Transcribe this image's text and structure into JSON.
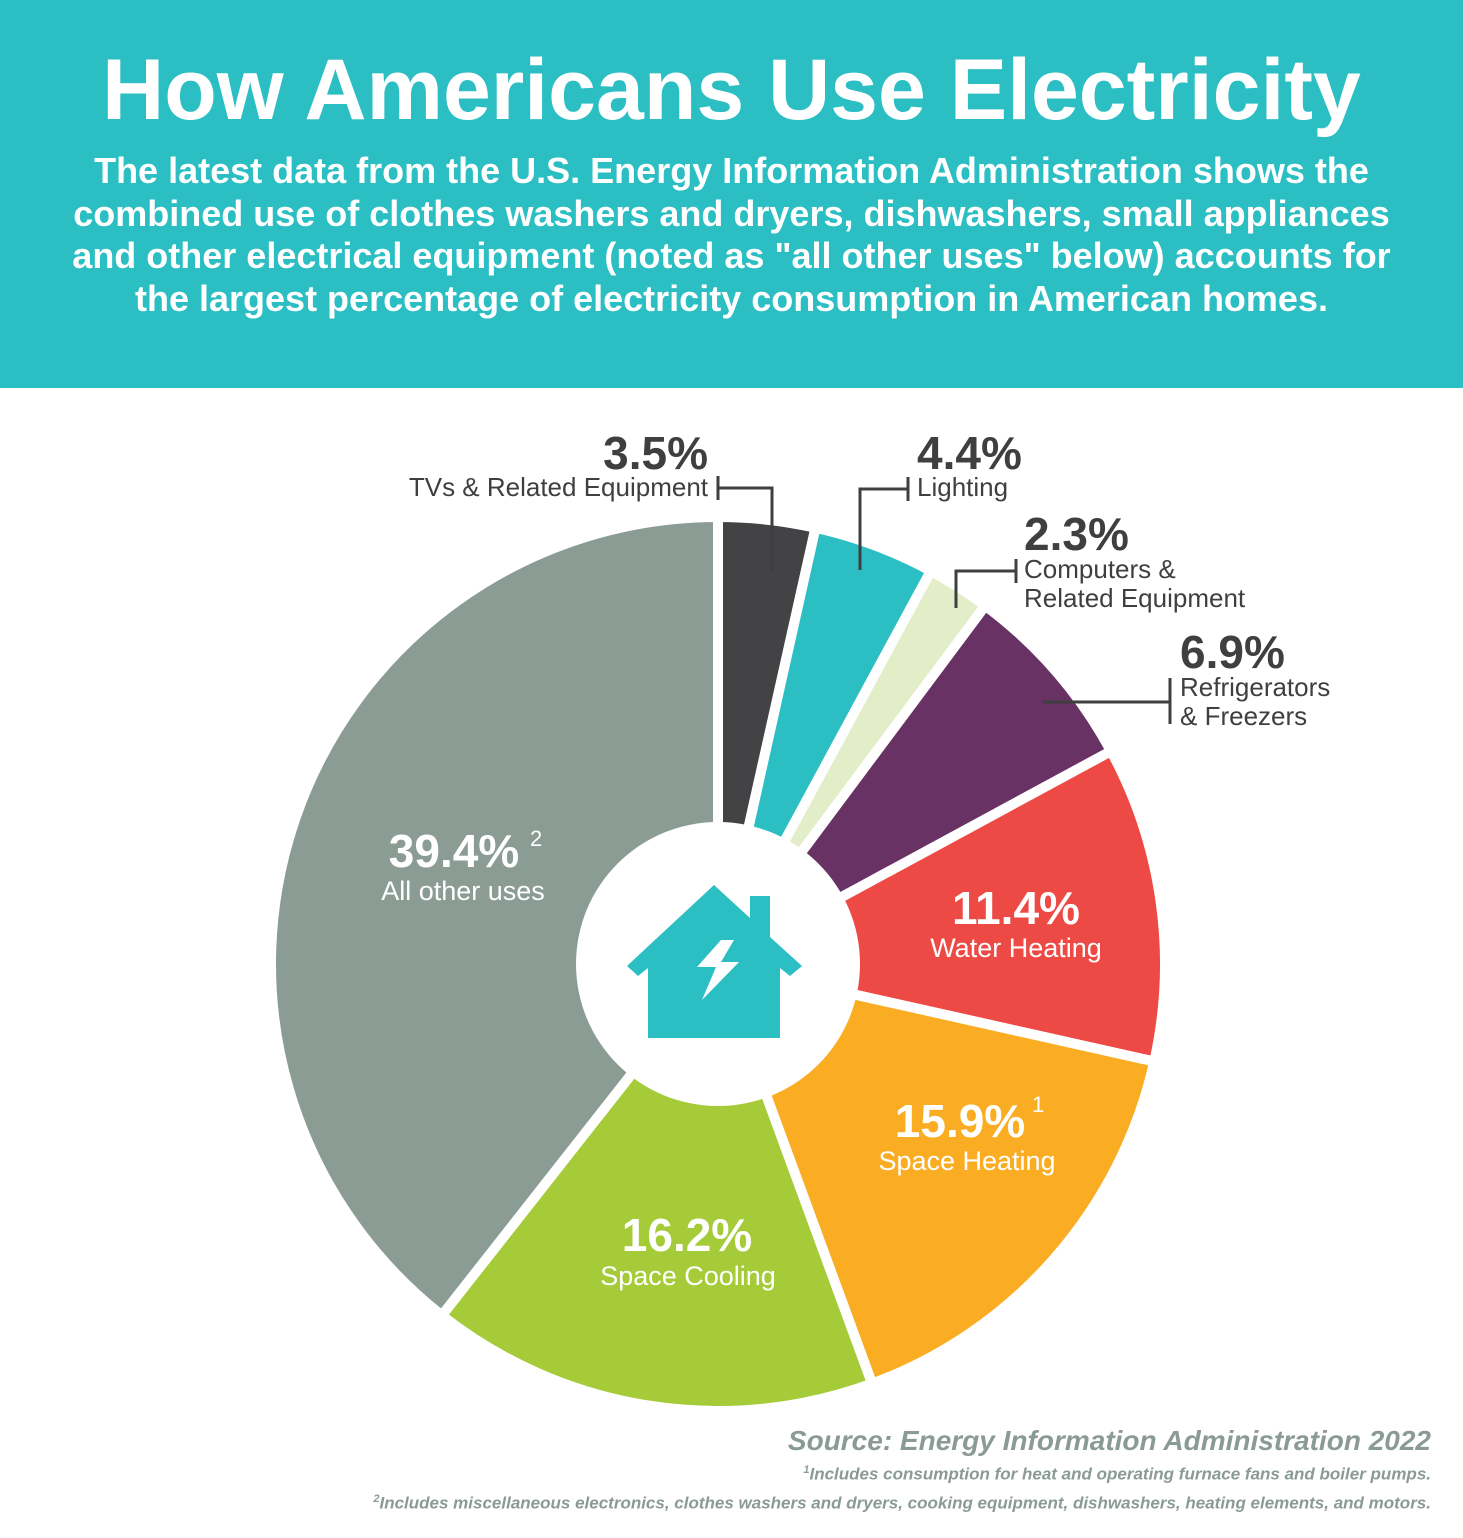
{
  "header": {
    "title": "How Americans Use Electricity",
    "subtitle": "The latest data from the U.S. Energy Information Administration shows the combined use of clothes washers and dryers, dishwashers, small appliances and other electrical equipment (noted as \"all other uses\" below) accounts for the largest percentage of electricity consumption in American homes."
  },
  "chart_data": {
    "type": "pie",
    "style": "donut",
    "slices": [
      {
        "label": "TVs & Related Equipment",
        "label_lines": [
          "TVs & Related Equipment"
        ],
        "value": 3.5,
        "value_text": "3.5%",
        "footnote": "",
        "color": "#434345",
        "placement": "outside-left"
      },
      {
        "label": "Lighting",
        "label_lines": [
          "Lighting"
        ],
        "value": 4.4,
        "value_text": "4.4%",
        "footnote": "",
        "color": "#2bbec3",
        "placement": "outside-right"
      },
      {
        "label": "Computers & Related Equipment",
        "label_lines": [
          "Computers &",
          "Related Equipment"
        ],
        "value": 2.3,
        "value_text": "2.3%",
        "footnote": "",
        "color": "#e3eec8",
        "placement": "outside-right"
      },
      {
        "label": "Refrigerators & Freezers",
        "label_lines": [
          "Refrigerators",
          "& Freezers"
        ],
        "value": 6.9,
        "value_text": "6.9%",
        "footnote": "",
        "color": "#693264",
        "placement": "outside-right"
      },
      {
        "label": "Water Heating",
        "label_lines": [
          "Water Heating"
        ],
        "value": 11.4,
        "value_text": "11.4%",
        "footnote": "",
        "color": "#ee4a45",
        "placement": "inside"
      },
      {
        "label": "Space Heating",
        "label_lines": [
          "Space Heating"
        ],
        "value": 15.9,
        "value_text": "15.9%",
        "footnote": "1",
        "color": "#faac22",
        "placement": "inside"
      },
      {
        "label": "Space Cooling",
        "label_lines": [
          "Space Cooling"
        ],
        "value": 16.2,
        "value_text": "16.2%",
        "footnote": "",
        "color": "#a6cb39",
        "placement": "inside"
      },
      {
        "label": "All other uses",
        "label_lines": [
          "All other uses"
        ],
        "value": 39.4,
        "value_text": "39.4%",
        "footnote": "2",
        "color": "#8b9c94",
        "placement": "inside"
      }
    ],
    "center_icon": "house-lightning-icon",
    "center_icon_color": "#2bbec3"
  },
  "footer": {
    "source": "Source: Energy Information Administration 2022",
    "note1_mark": "1",
    "note1": "Includes consumption for heat and operating furnace fans and boiler pumps.",
    "note2_mark": "2",
    "note2": "Includes miscellaneous electronics, clothes washers and dryers, cooking equipment, dishwashers, heating elements, and motors."
  }
}
